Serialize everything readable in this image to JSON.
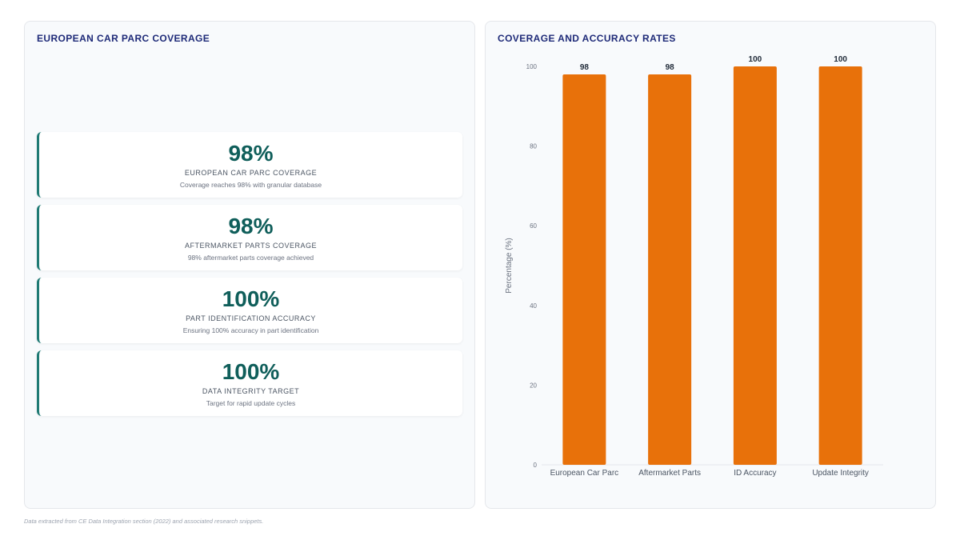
{
  "left_panel": {
    "title": "EUROPEAN CAR PARC COVERAGE",
    "cards": [
      {
        "value": "98%",
        "label": "EUROPEAN CAR PARC COVERAGE",
        "desc": "Coverage reaches 98% with granular database"
      },
      {
        "value": "98%",
        "label": "AFTERMARKET PARTS COVERAGE",
        "desc": "98% aftermarket parts coverage achieved"
      },
      {
        "value": "100%",
        "label": "PART IDENTIFICATION ACCURACY",
        "desc": "Ensuring 100% accuracy in part identification"
      },
      {
        "value": "100%",
        "label": "DATA INTEGRITY TARGET",
        "desc": "Target for rapid update cycles"
      }
    ]
  },
  "right_panel": {
    "title": "COVERAGE AND ACCURACY RATES"
  },
  "chart_data": {
    "type": "bar",
    "categories": [
      "European Car Parc",
      "Aftermarket Parts",
      "ID Accuracy",
      "Update Integrity"
    ],
    "values": [
      98,
      98,
      100,
      100
    ],
    "value_labels": [
      "98",
      "98",
      "100",
      "100"
    ],
    "ylabel": "Percentage (%)",
    "xlabel": "",
    "ylim": [
      0,
      100
    ],
    "yticks": [
      "0",
      "20",
      "40",
      "60",
      "80",
      "100"
    ],
    "grid": false,
    "legend": "none",
    "bar_color": "#e8710a"
  },
  "footnote": "Data extracted from CE Data Integration section (2022) and associated research snippets."
}
